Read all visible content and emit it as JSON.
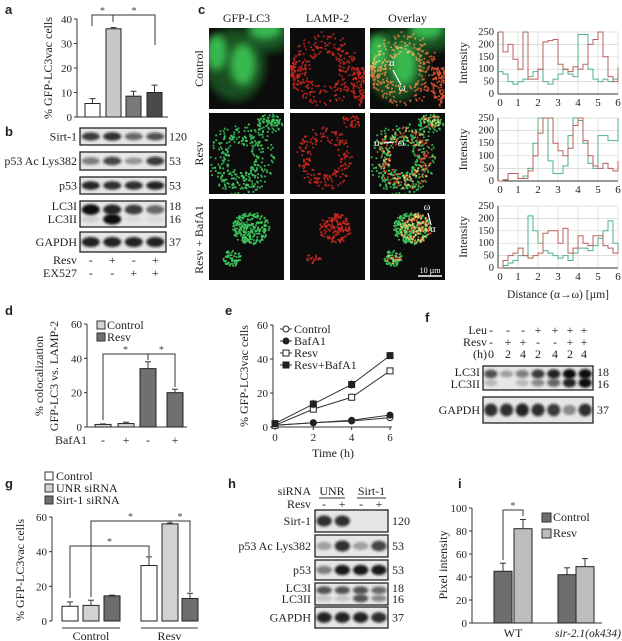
{
  "panel_labels": {
    "a": "a",
    "b": "b",
    "c": "c",
    "d": "d",
    "e": "e",
    "f": "f",
    "g": "g",
    "h": "h",
    "i": "i"
  },
  "chart_data": [
    {
      "panel": "a",
      "type": "bar",
      "ylabel": "% GFP-LC3vac cells",
      "ylim": [
        0,
        40
      ],
      "yticks": [
        0,
        10,
        20,
        30,
        40
      ],
      "values": [
        5.5,
        36,
        8.5,
        10
      ],
      "errors": [
        2,
        0.5,
        2,
        3
      ],
      "colors": [
        "#ffffff",
        "#c8c8c8",
        "#7a7a7a",
        "#4a4a4a"
      ],
      "significance": [
        "*",
        "*"
      ]
    },
    {
      "panel": "c",
      "type": "line",
      "subtype": "step",
      "xlabel": "Distance (α→ω) [µm]",
      "ylabel": "Intensity",
      "xlim": [
        0,
        6
      ],
      "ylim": [
        0,
        250
      ],
      "grid": true,
      "xticks": [
        0,
        1,
        2,
        3,
        4,
        5,
        6
      ],
      "yticks": [
        0,
        50,
        100,
        150,
        200,
        250
      ],
      "x_step": 0.25,
      "colors": {
        "red": "#b8605a",
        "green": "#4fb08c"
      },
      "profiles": [
        {
          "row": "Control",
          "red": [
            250,
            170,
            200,
            140,
            100,
            250,
            60,
            60,
            100,
            210,
            215,
            220,
            120,
            100,
            90,
            110,
            100,
            120,
            200,
            220,
            250,
            150,
            70,
            50,
            100
          ],
          "green": [
            90,
            80,
            50,
            40,
            50,
            60,
            70,
            90,
            100,
            50,
            40,
            60,
            80,
            100,
            80,
            70,
            240,
            240,
            100,
            60,
            50,
            60,
            50,
            60,
            110
          ]
        },
        {
          "row": "Resv",
          "red": [
            0,
            5,
            30,
            30,
            10,
            10,
            40,
            100,
            190,
            250,
            250,
            150,
            120,
            100,
            130,
            220,
            250,
            160,
            100,
            60,
            50,
            70,
            50,
            40,
            80
          ],
          "green": [
            0,
            5,
            30,
            30,
            10,
            20,
            50,
            150,
            250,
            250,
            80,
            30,
            30,
            60,
            180,
            250,
            240,
            150,
            70,
            50,
            180,
            180,
            160,
            160,
            250
          ]
        },
        {
          "row": "Resv + BafA1",
          "red": [
            0,
            30,
            50,
            60,
            80,
            50,
            40,
            50,
            60,
            140,
            150,
            150,
            100,
            160,
            60,
            80,
            130,
            100,
            90,
            130,
            130,
            90,
            80,
            60,
            70
          ],
          "green": [
            0,
            10,
            20,
            30,
            50,
            50,
            210,
            150,
            100,
            70,
            60,
            50,
            40,
            50,
            30,
            60,
            80,
            80,
            70,
            90,
            120,
            150,
            190,
            100,
            70
          ]
        }
      ]
    },
    {
      "panel": "d",
      "type": "bar",
      "ylabel": [
        "% colocalization",
        "GFP-LC3 vs. LAMP-2"
      ],
      "ylim": [
        0,
        60
      ],
      "yticks": [
        0,
        20,
        40,
        60
      ],
      "legend": [
        {
          "label": "Control",
          "color": "#d4d4d4"
        },
        {
          "label": "Resv",
          "color": "#707070"
        }
      ],
      "legend_position": "top-left",
      "values": [
        1.5,
        2,
        34,
        20
      ],
      "errors": [
        0.3,
        0.8,
        4,
        2
      ],
      "colors": [
        "#d4d4d4",
        "#d4d4d4",
        "#707070",
        "#707070"
      ],
      "condition": {
        "label": "BafA1",
        "values": [
          "-",
          "+",
          "-",
          "+"
        ]
      },
      "significance": [
        "*",
        "*"
      ]
    },
    {
      "panel": "e",
      "type": "line",
      "xlabel": "Time (h)",
      "ylabel": "% GFP-LC3vac cells",
      "x": [
        0,
        2,
        4,
        6
      ],
      "xlim": [
        0,
        6
      ],
      "xticks": [
        0,
        2,
        4,
        6
      ],
      "ylim": [
        0,
        60
      ],
      "yticks": [
        0,
        20,
        40,
        60
      ],
      "legend_position": "top-left",
      "series": [
        {
          "name": "Control",
          "marker": "open-circle",
          "values": [
            1,
            2.5,
            3.5,
            5.5
          ],
          "errors": [
            0.5,
            0.5,
            1,
            1
          ]
        },
        {
          "name": "BafA1",
          "marker": "filled-circle",
          "values": [
            1,
            2.5,
            4,
            7
          ],
          "errors": [
            0.5,
            0.5,
            1,
            1.5
          ]
        },
        {
          "name": "Resv",
          "marker": "open-square",
          "values": [
            1,
            10.5,
            17.5,
            33
          ],
          "errors": [
            0.5,
            1.5,
            2,
            1.5
          ]
        },
        {
          "name": "Resv+BafA1",
          "marker": "filled-square",
          "values": [
            2,
            13.5,
            25,
            42
          ],
          "errors": [
            1,
            2.5,
            2.5,
            1.5
          ]
        }
      ]
    },
    {
      "panel": "g",
      "type": "bar",
      "ylabel": "% GFP-LC3vac cells",
      "ylim": [
        0,
        60
      ],
      "yticks": [
        0,
        20,
        40,
        60
      ],
      "categories": [
        "Control",
        "Resv"
      ],
      "legend_position": "top-left",
      "series": [
        {
          "name": "Control",
          "color": "#ffffff",
          "values": [
            8.5,
            32
          ],
          "errors": [
            2.5,
            5
          ]
        },
        {
          "name": "UNR siRNA",
          "color": "#d2d2d2",
          "values": [
            9,
            56
          ],
          "errors": [
            3,
            0.5
          ]
        },
        {
          "name": "Sirt-1 siRNA",
          "color": "#6e6e6e",
          "values": [
            14.5,
            13
          ],
          "errors": [
            0.4,
            3
          ]
        }
      ],
      "significance": [
        "*",
        "*",
        "*"
      ]
    },
    {
      "panel": "i",
      "type": "bar",
      "ylabel": "Pixel intensity",
      "ylim": [
        0,
        100
      ],
      "yticks": [
        0,
        20,
        40,
        60,
        80,
        100
      ],
      "categories": [
        "WT",
        "sir-2.1(ok434)"
      ],
      "legend_position": "top-right",
      "series": [
        {
          "name": "Control",
          "color": "#6e6e6e",
          "values": [
            45,
            42
          ],
          "errors": [
            7,
            6
          ]
        },
        {
          "name": "Resv",
          "color": "#bdbdbd",
          "values": [
            82,
            49
          ],
          "errors": [
            8,
            7
          ]
        }
      ],
      "significance": [
        "*"
      ]
    }
  ],
  "blot_b": {
    "rows": [
      {
        "labels": [
          "Sirt-1"
        ],
        "mw": [
          "120"
        ],
        "bands": [
          [
            0.8,
            0.85,
            0.6,
            0.7
          ]
        ]
      },
      {
        "labels": [
          "p53 Ac Lys382"
        ],
        "mw": [
          "53"
        ],
        "bands": [
          [
            0.5,
            0.75,
            0.35,
            0.8
          ]
        ]
      },
      {
        "labels": [
          "p53"
        ],
        "mw": [
          "53"
        ],
        "bands": [
          [
            0.9,
            0.85,
            0.85,
            0.9
          ]
        ]
      },
      {
        "labels": [
          "LC3I",
          "LC3II"
        ],
        "mw": [
          "18",
          "16"
        ],
        "bands": [
          [
            1,
            0.9,
            0.8,
            0.6
          ],
          [
            0.1,
            1,
            0.05,
            0.05
          ]
        ]
      },
      {
        "labels": [
          "GAPDH"
        ],
        "mw": [
          "37"
        ],
        "bands": [
          [
            0.9,
            0.9,
            0.9,
            0.9
          ]
        ]
      }
    ],
    "conditions": [
      {
        "label": "Resv",
        "values": [
          "-",
          "+",
          "-",
          "+"
        ]
      },
      {
        "label": "EX527",
        "values": [
          "-",
          "-",
          "+",
          "+"
        ]
      }
    ]
  },
  "microscopy_c": {
    "columns": [
      "GFP-LC3",
      "LAMP-2",
      "Overlay"
    ],
    "rows": [
      "Control",
      "Resv",
      "Resv + BafA1"
    ],
    "alpha": "α",
    "omega": "ω",
    "scale_bar": "10 µm"
  },
  "blot_f": {
    "conditions": [
      {
        "label": "Leu",
        "values": [
          "-",
          "-",
          "-",
          "+",
          "+",
          "+",
          "+"
        ]
      },
      {
        "label": "Resv",
        "values": [
          "-",
          "+",
          "+",
          "-",
          "-",
          "+",
          "+"
        ]
      },
      {
        "label": "(h)",
        "values": [
          "0",
          "2",
          "4",
          "2",
          "4",
          "2",
          "4"
        ]
      }
    ],
    "rows": [
      {
        "labels": [
          "LC3I",
          "LC3II"
        ],
        "mw": [
          "18",
          "16"
        ],
        "bands": [
          [
            0.7,
            0.3,
            0.5,
            0.8,
            0.9,
            1,
            1
          ],
          [
            0.2,
            0,
            0.2,
            0.4,
            0.6,
            0.9,
            1
          ]
        ]
      },
      {
        "labels": [
          "GAPDH"
        ],
        "mw": [
          "37"
        ],
        "bands": [
          [
            0.85,
            0.85,
            0.9,
            0.85,
            0.8,
            0.4,
            0.85
          ]
        ]
      }
    ]
  },
  "blot_h": {
    "sirna_label": "siRNA",
    "groups": [
      "UNR",
      "Sirt-1"
    ],
    "resv": {
      "label": "Resv",
      "values": [
        "-",
        "+",
        "-",
        "+"
      ]
    },
    "rows": [
      {
        "labels": [
          "Sirt-1"
        ],
        "mw": [
          "120"
        ],
        "bands": [
          [
            0.85,
            0.85,
            0,
            0
          ]
        ]
      },
      {
        "labels": [
          "p53 Ac Lys382"
        ],
        "mw": [
          "53"
        ],
        "bands": [
          [
            0.3,
            0.85,
            0.3,
            0.75
          ]
        ]
      },
      {
        "labels": [
          "p53"
        ],
        "mw": [
          "53"
        ],
        "bands": [
          [
            0.5,
            0.95,
            0.95,
            0.95
          ]
        ]
      },
      {
        "labels": [
          "LC3I",
          "LC3II"
        ],
        "mw": [
          "18",
          "16"
        ],
        "bands": [
          [
            0.7,
            0.7,
            0.7,
            0.6
          ],
          [
            0.15,
            0.15,
            0.7,
            0.4
          ]
        ]
      },
      {
        "labels": [
          "GAPDH"
        ],
        "mw": [
          "37"
        ],
        "bands": [
          [
            0.9,
            0.9,
            0.9,
            0.85
          ]
        ]
      }
    ]
  }
}
